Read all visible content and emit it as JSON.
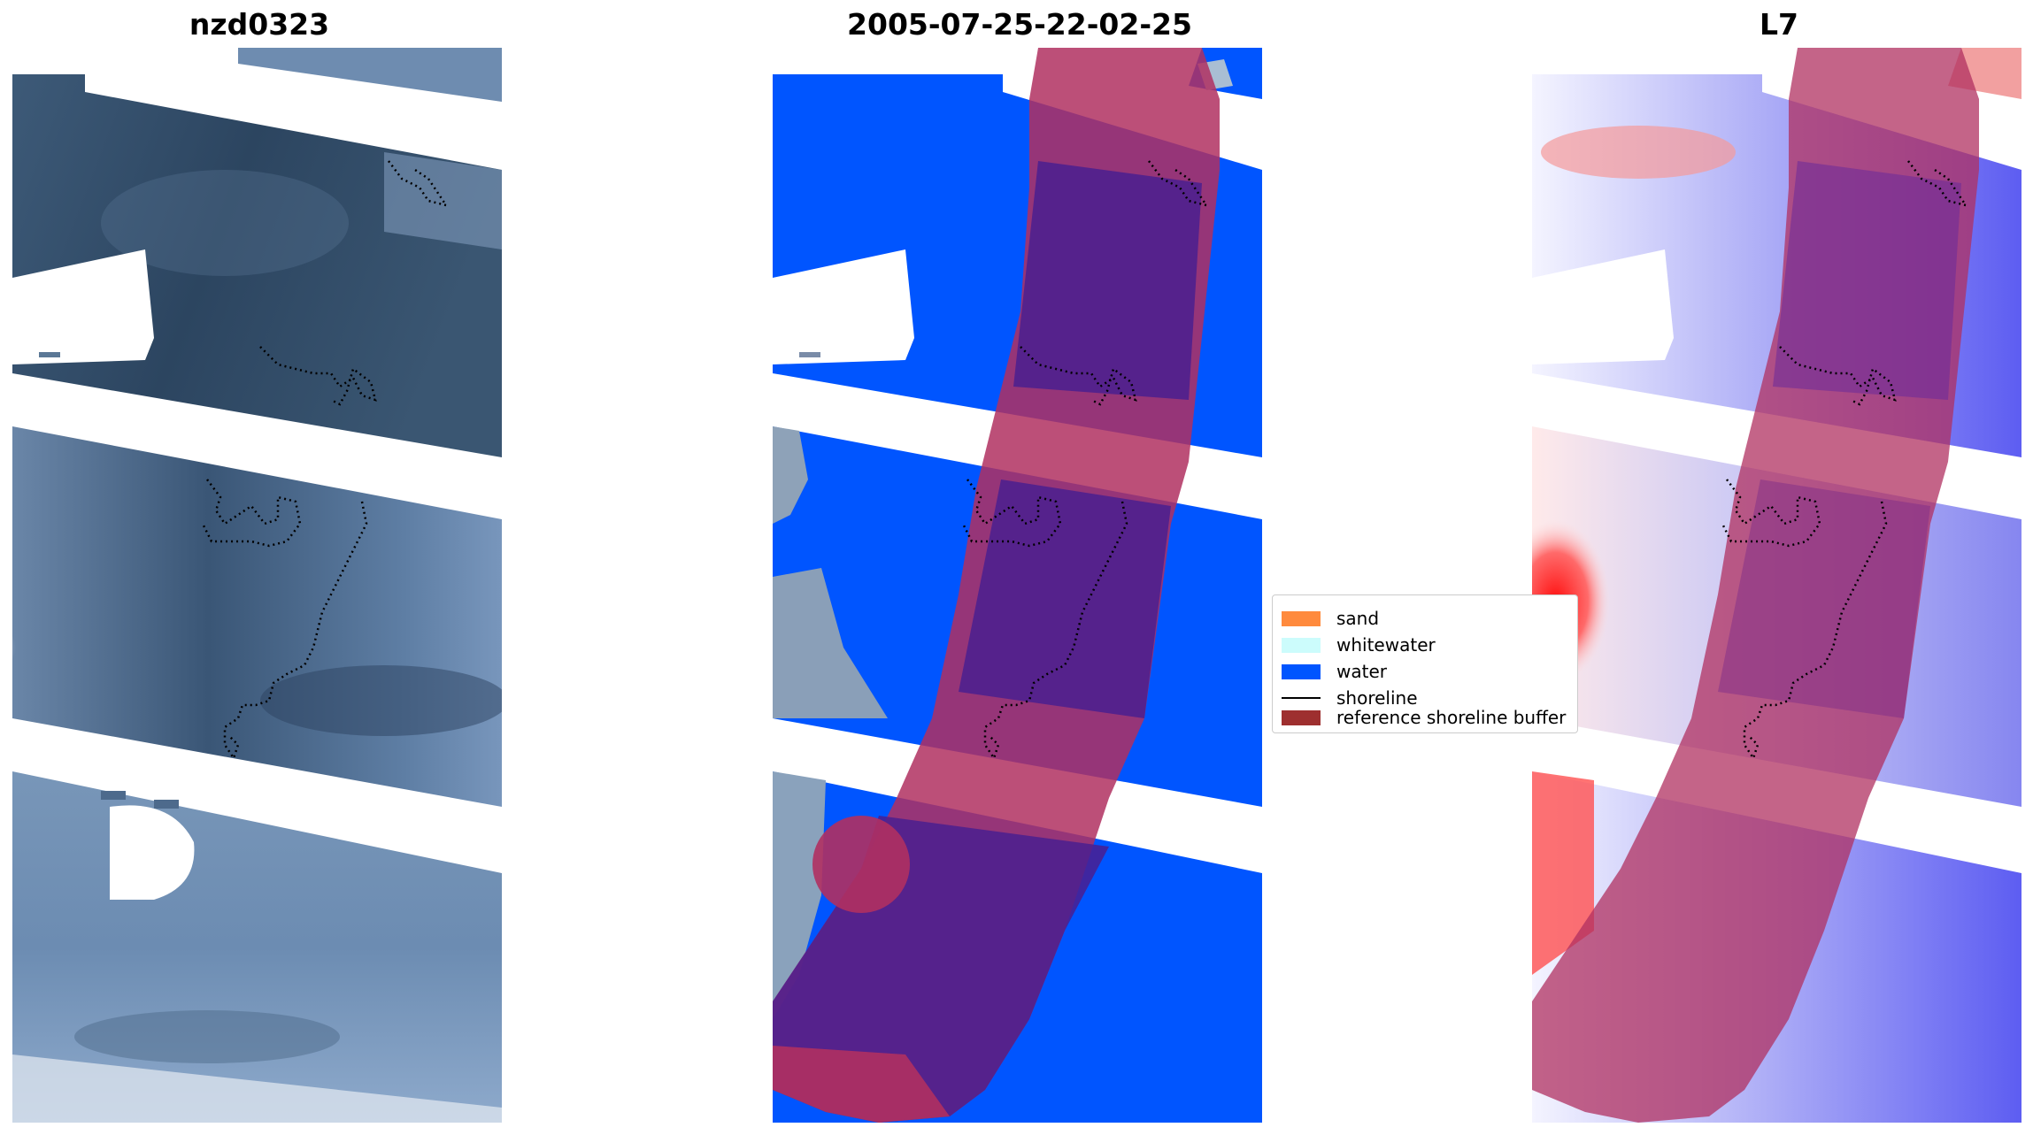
{
  "panels": {
    "left": {
      "title": "nzd0323"
    },
    "middle": {
      "title": "2005-07-25-22-02-25"
    },
    "right": {
      "title": "L7"
    }
  },
  "legend": {
    "items": [
      {
        "label": "sand",
        "color": "#ff8a3d",
        "kind": "patch"
      },
      {
        "label": "whitewater",
        "color": "#ccfcfc",
        "kind": "patch"
      },
      {
        "label": "water",
        "color": "#0055ff",
        "kind": "patch"
      },
      {
        "label": "shoreline",
        "color": "#000000",
        "kind": "line"
      },
      {
        "label": "reference shoreline buffer",
        "color": "#9e2f2f",
        "kind": "patch"
      }
    ]
  },
  "colors": {
    "buffer_overlay": "#b03060",
    "water_class": "#0055ff",
    "imagery_dark": "#2f4a63",
    "imagery_light": "#8aa6c8",
    "index_positive": "#ff1010",
    "index_negative": "#3b3bff"
  }
}
